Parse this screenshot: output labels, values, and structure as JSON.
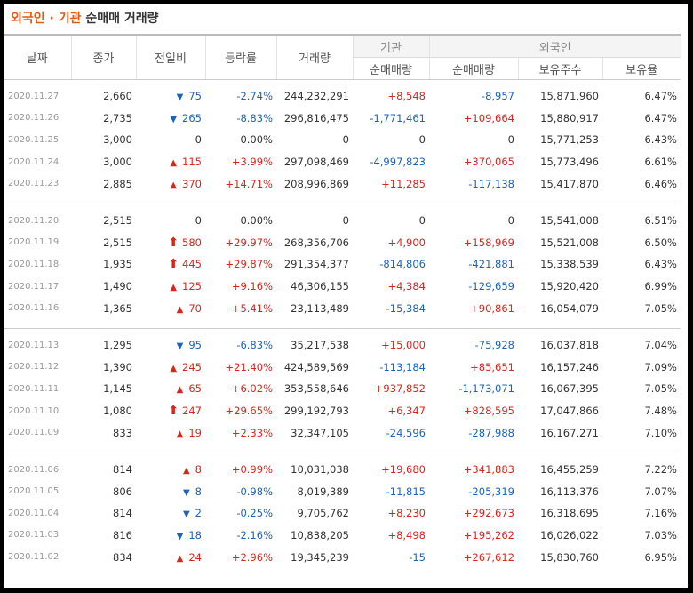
{
  "title": {
    "orgs": "외국인 · 기관",
    "sub": "순매매 거래량"
  },
  "headers": {
    "date": "날짜",
    "close": "종가",
    "change": "전일비",
    "rate": "등락률",
    "volume": "거래량",
    "inst_group": "기관",
    "inst_net": "순매매량",
    "foreign_group": "외국인",
    "foreign_net": "순매매량",
    "holdings": "보유주수",
    "ratio": "보유율"
  },
  "colors": {
    "up": "#d8261f",
    "down": "#1c63b8",
    "accent": "#e05a1b"
  },
  "rows": [
    {
      "date": "2020.11.27",
      "close": "2,660",
      "dir": "down",
      "change": "75",
      "rate": "-2.74%",
      "volume": "244,232,291",
      "inst": "+8,548",
      "foreign": "-8,957",
      "holdings": "15,871,960",
      "ratio": "6.47%"
    },
    {
      "date": "2020.11.26",
      "close": "2,735",
      "dir": "down",
      "change": "265",
      "rate": "-8.83%",
      "volume": "296,816,475",
      "inst": "-1,771,461",
      "foreign": "+109,664",
      "holdings": "15,880,917",
      "ratio": "6.47%"
    },
    {
      "date": "2020.11.25",
      "close": "3,000",
      "dir": "none",
      "change": "0",
      "rate": "0.00%",
      "volume": "0",
      "inst": "0",
      "foreign": "0",
      "holdings": "15,771,253",
      "ratio": "6.43%"
    },
    {
      "date": "2020.11.24",
      "close": "3,000",
      "dir": "up",
      "change": "115",
      "rate": "+3.99%",
      "volume": "297,098,469",
      "inst": "-4,997,823",
      "foreign": "+370,065",
      "holdings": "15,773,496",
      "ratio": "6.61%"
    },
    {
      "date": "2020.11.23",
      "close": "2,885",
      "dir": "up",
      "change": "370",
      "rate": "+14.71%",
      "volume": "208,996,869",
      "inst": "+11,285",
      "foreign": "-117,138",
      "holdings": "15,417,870",
      "ratio": "6.46%"
    },
    {
      "date": "2020.11.20",
      "close": "2,515",
      "dir": "none",
      "change": "0",
      "rate": "0.00%",
      "volume": "0",
      "inst": "0",
      "foreign": "0",
      "holdings": "15,541,008",
      "ratio": "6.51%"
    },
    {
      "date": "2020.11.19",
      "close": "2,515",
      "dir": "limit",
      "change": "580",
      "rate": "+29.97%",
      "volume": "268,356,706",
      "inst": "+4,900",
      "foreign": "+158,969",
      "holdings": "15,521,008",
      "ratio": "6.50%"
    },
    {
      "date": "2020.11.18",
      "close": "1,935",
      "dir": "limit",
      "change": "445",
      "rate": "+29.87%",
      "volume": "291,354,377",
      "inst": "-814,806",
      "foreign": "-421,881",
      "holdings": "15,338,539",
      "ratio": "6.43%"
    },
    {
      "date": "2020.11.17",
      "close": "1,490",
      "dir": "up",
      "change": "125",
      "rate": "+9.16%",
      "volume": "46,306,155",
      "inst": "+4,384",
      "foreign": "-129,659",
      "holdings": "15,920,420",
      "ratio": "6.99%"
    },
    {
      "date": "2020.11.16",
      "close": "1,365",
      "dir": "up",
      "change": "70",
      "rate": "+5.41%",
      "volume": "23,113,489",
      "inst": "-15,384",
      "foreign": "+90,861",
      "holdings": "16,054,079",
      "ratio": "7.05%"
    },
    {
      "date": "2020.11.13",
      "close": "1,295",
      "dir": "down",
      "change": "95",
      "rate": "-6.83%",
      "volume": "35,217,538",
      "inst": "+15,000",
      "foreign": "-75,928",
      "holdings": "16,037,818",
      "ratio": "7.04%"
    },
    {
      "date": "2020.11.12",
      "close": "1,390",
      "dir": "up",
      "change": "245",
      "rate": "+21.40%",
      "volume": "424,589,569",
      "inst": "-113,184",
      "foreign": "+85,651",
      "holdings": "16,157,246",
      "ratio": "7.09%"
    },
    {
      "date": "2020.11.11",
      "close": "1,145",
      "dir": "up",
      "change": "65",
      "rate": "+6.02%",
      "volume": "353,558,646",
      "inst": "+937,852",
      "foreign": "-1,173,071",
      "holdings": "16,067,395",
      "ratio": "7.05%"
    },
    {
      "date": "2020.11.10",
      "close": "1,080",
      "dir": "limit",
      "change": "247",
      "rate": "+29.65%",
      "volume": "299,192,793",
      "inst": "+6,347",
      "foreign": "+828,595",
      "holdings": "17,047,866",
      "ratio": "7.48%"
    },
    {
      "date": "2020.11.09",
      "close": "833",
      "dir": "up",
      "change": "19",
      "rate": "+2.33%",
      "volume": "32,347,105",
      "inst": "-24,596",
      "foreign": "-287,988",
      "holdings": "16,167,271",
      "ratio": "7.10%"
    },
    {
      "date": "2020.11.06",
      "close": "814",
      "dir": "up",
      "change": "8",
      "rate": "+0.99%",
      "volume": "10,031,038",
      "inst": "+19,680",
      "foreign": "+341,883",
      "holdings": "16,455,259",
      "ratio": "7.22%"
    },
    {
      "date": "2020.11.05",
      "close": "806",
      "dir": "down",
      "change": "8",
      "rate": "-0.98%",
      "volume": "8,019,389",
      "inst": "-11,815",
      "foreign": "-205,319",
      "holdings": "16,113,376",
      "ratio": "7.07%"
    },
    {
      "date": "2020.11.04",
      "close": "814",
      "dir": "down",
      "change": "2",
      "rate": "-0.25%",
      "volume": "9,705,762",
      "inst": "+8,230",
      "foreign": "+292,673",
      "holdings": "16,318,695",
      "ratio": "7.16%"
    },
    {
      "date": "2020.11.03",
      "close": "816",
      "dir": "down",
      "change": "18",
      "rate": "-2.16%",
      "volume": "10,838,205",
      "inst": "+8,498",
      "foreign": "+195,262",
      "holdings": "16,026,022",
      "ratio": "7.03%"
    },
    {
      "date": "2020.11.02",
      "close": "834",
      "dir": "up",
      "change": "24",
      "rate": "+2.96%",
      "volume": "19,345,239",
      "inst": "-15",
      "foreign": "+267,612",
      "holdings": "15,830,760",
      "ratio": "6.95%"
    }
  ]
}
